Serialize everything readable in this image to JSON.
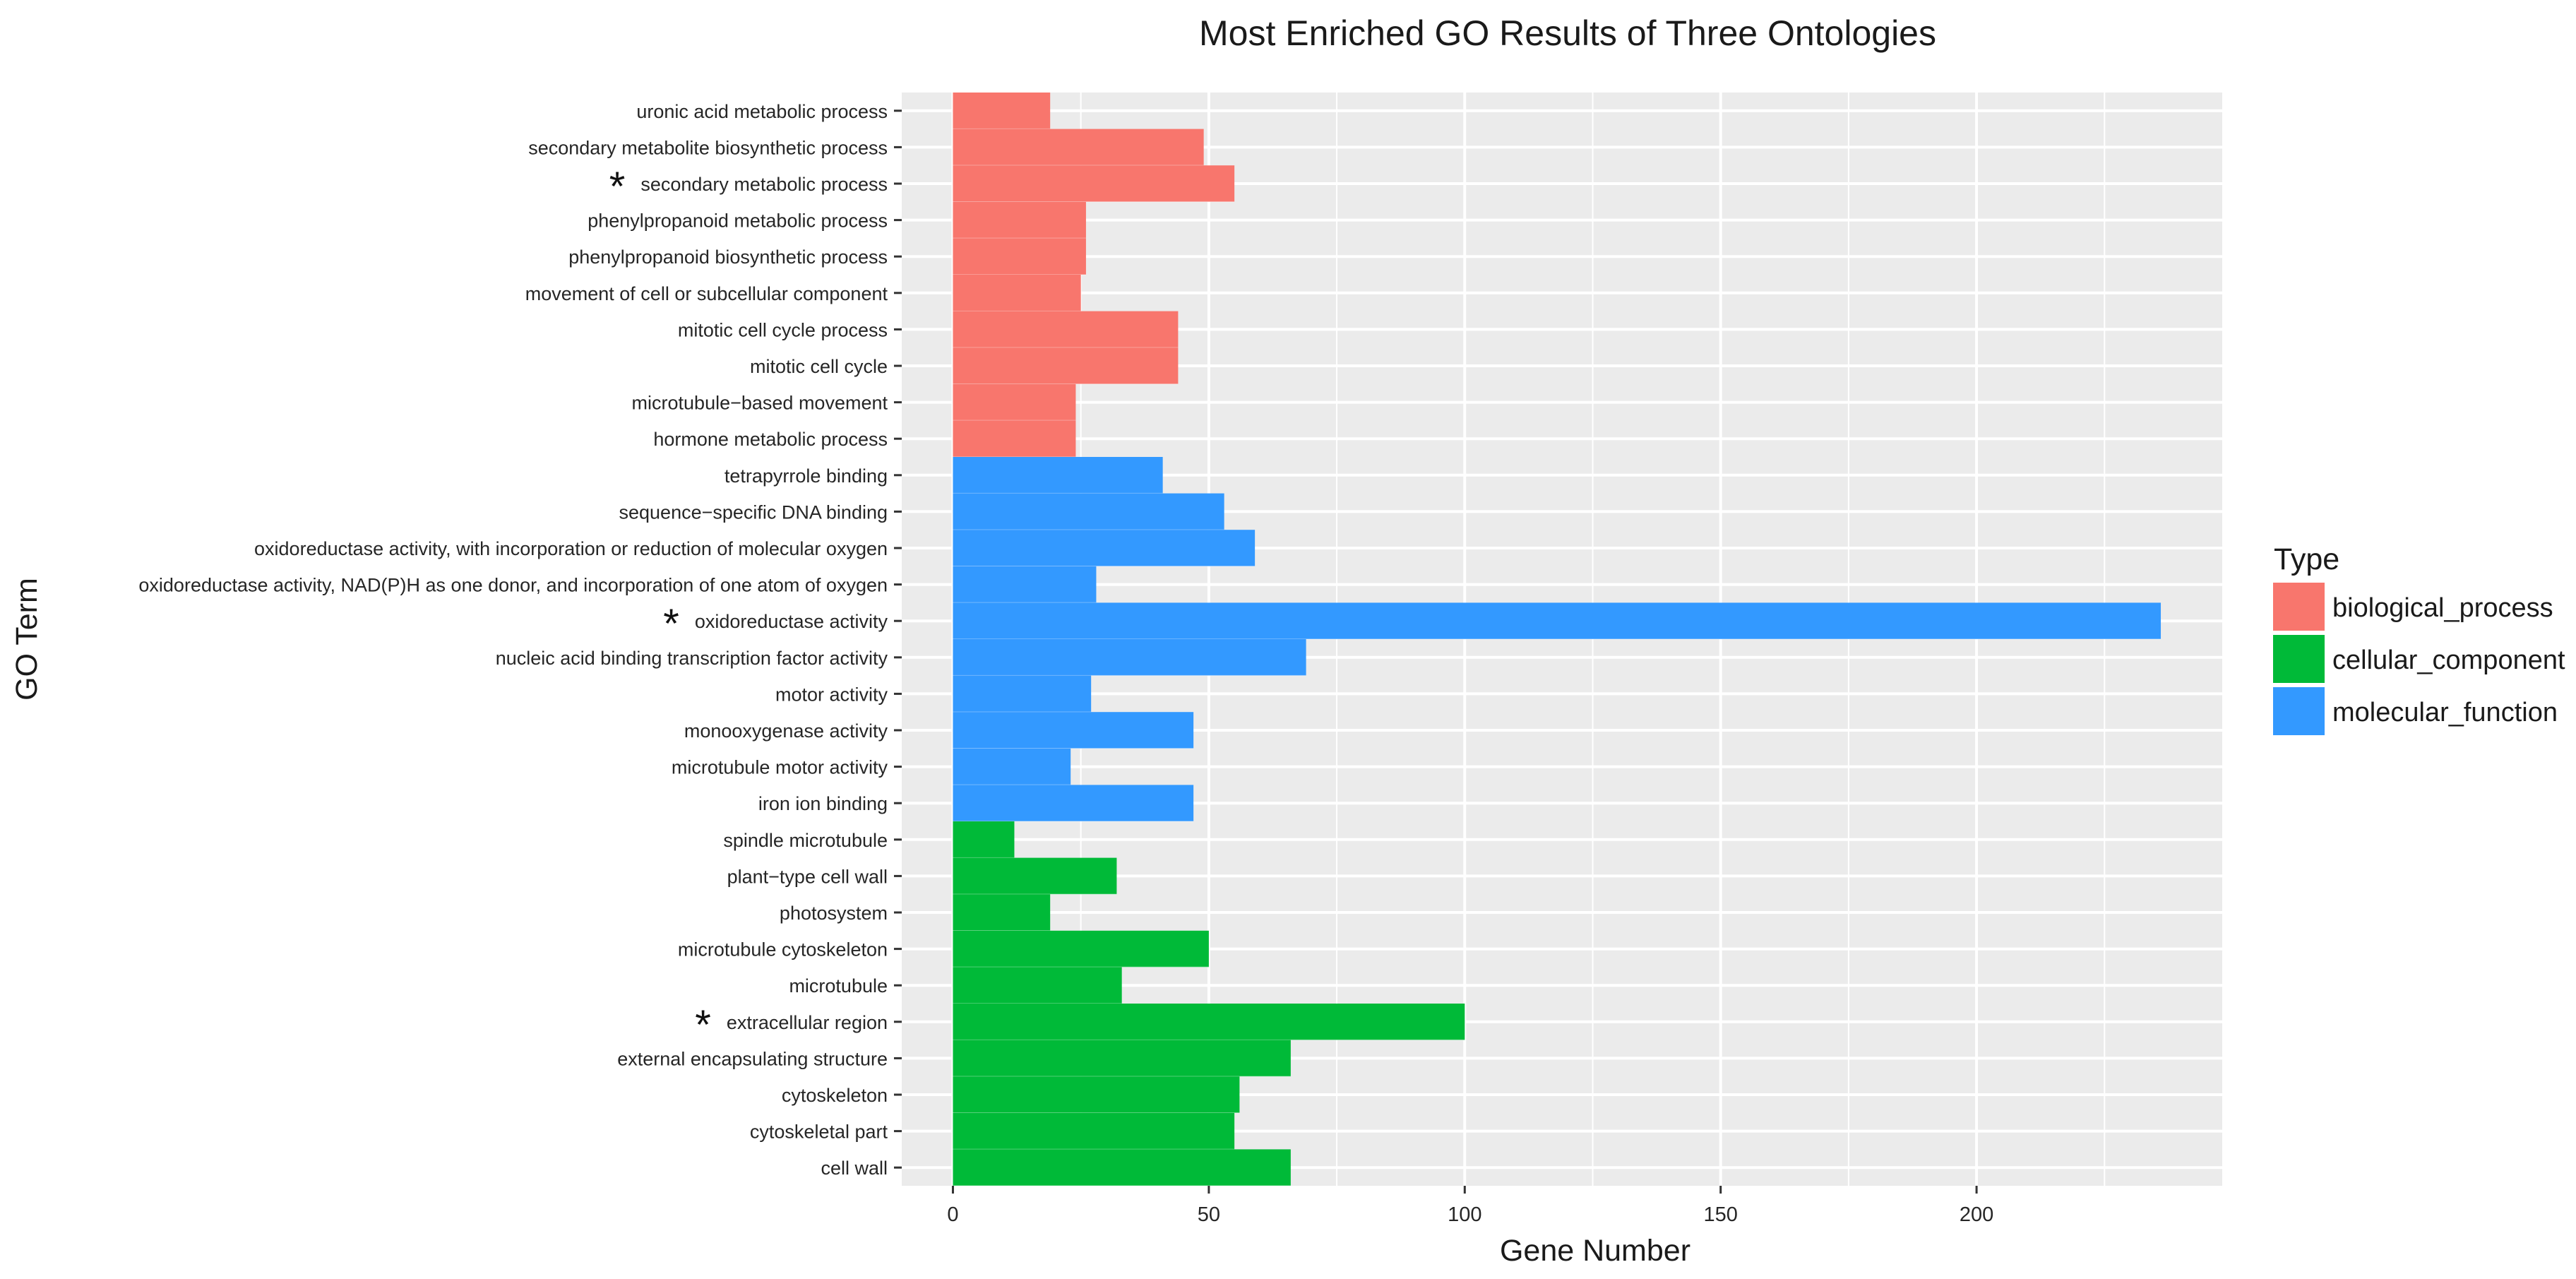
{
  "chart_data": {
    "type": "bar",
    "orientation": "horizontal",
    "title": "Most Enriched GO Results of Three Ontologies",
    "xlabel": "Gene Number",
    "ylabel": "GO Term",
    "xlim": [
      -10,
      248
    ],
    "x_ticks": [
      0,
      50,
      100,
      150,
      200
    ],
    "grid": true,
    "legend": {
      "title": "Type",
      "placement": "right",
      "entries": [
        {
          "name": "biological_process",
          "color": "#F8766D"
        },
        {
          "name": "cellular_component",
          "color": "#00BA38"
        },
        {
          "name": "molecular_function",
          "color": "#3399FF"
        }
      ]
    },
    "bars": [
      {
        "term": "uronic acid metabolic process",
        "value": 19,
        "type": "biological_process",
        "marked": false
      },
      {
        "term": "secondary metabolite biosynthetic process",
        "value": 49,
        "type": "biological_process",
        "marked": false
      },
      {
        "term": "secondary metabolic process",
        "value": 55,
        "type": "biological_process",
        "marked": true
      },
      {
        "term": "phenylpropanoid metabolic process",
        "value": 26,
        "type": "biological_process",
        "marked": false
      },
      {
        "term": "phenylpropanoid biosynthetic process",
        "value": 26,
        "type": "biological_process",
        "marked": false
      },
      {
        "term": "movement of cell or subcellular component",
        "value": 25,
        "type": "biological_process",
        "marked": false
      },
      {
        "term": "mitotic cell cycle process",
        "value": 44,
        "type": "biological_process",
        "marked": false
      },
      {
        "term": "mitotic cell cycle",
        "value": 44,
        "type": "biological_process",
        "marked": false
      },
      {
        "term": "microtubule−based movement",
        "value": 24,
        "type": "biological_process",
        "marked": false
      },
      {
        "term": "hormone metabolic process",
        "value": 24,
        "type": "biological_process",
        "marked": false
      },
      {
        "term": "tetrapyrrole binding",
        "value": 41,
        "type": "molecular_function",
        "marked": false
      },
      {
        "term": "sequence−specific DNA binding",
        "value": 53,
        "type": "molecular_function",
        "marked": false
      },
      {
        "term": "oxidoreductase activity, with incorporation or reduction of molecular oxygen",
        "value": 59,
        "type": "molecular_function",
        "marked": false
      },
      {
        "term": "oxidoreductase activity, NAD(P)H as one donor, and incorporation of one atom of oxygen",
        "value": 28,
        "type": "molecular_function",
        "marked": false
      },
      {
        "term": "oxidoreductase activity",
        "value": 236,
        "type": "molecular_function",
        "marked": true
      },
      {
        "term": "nucleic acid binding transcription factor activity",
        "value": 69,
        "type": "molecular_function",
        "marked": false
      },
      {
        "term": "motor activity",
        "value": 27,
        "type": "molecular_function",
        "marked": false
      },
      {
        "term": "monooxygenase activity",
        "value": 47,
        "type": "molecular_function",
        "marked": false
      },
      {
        "term": "microtubule motor activity",
        "value": 23,
        "type": "molecular_function",
        "marked": false
      },
      {
        "term": "iron ion binding",
        "value": 47,
        "type": "molecular_function",
        "marked": false
      },
      {
        "term": "spindle microtubule",
        "value": 12,
        "type": "cellular_component",
        "marked": false
      },
      {
        "term": "plant−type cell wall",
        "value": 32,
        "type": "cellular_component",
        "marked": false
      },
      {
        "term": "photosystem",
        "value": 19,
        "type": "cellular_component",
        "marked": false
      },
      {
        "term": "microtubule cytoskeleton",
        "value": 50,
        "type": "cellular_component",
        "marked": false
      },
      {
        "term": "microtubule",
        "value": 33,
        "type": "cellular_component",
        "marked": false
      },
      {
        "term": "extracellular region",
        "value": 100,
        "type": "cellular_component",
        "marked": true
      },
      {
        "term": "external encapsulating structure",
        "value": 66,
        "type": "cellular_component",
        "marked": false
      },
      {
        "term": "cytoskeleton",
        "value": 56,
        "type": "cellular_component",
        "marked": false
      },
      {
        "term": "cytoskeletal part",
        "value": 55,
        "type": "cellular_component",
        "marked": false
      },
      {
        "term": "cell wall",
        "value": 66,
        "type": "cellular_component",
        "marked": false
      }
    ],
    "marker_symbol": "*"
  }
}
